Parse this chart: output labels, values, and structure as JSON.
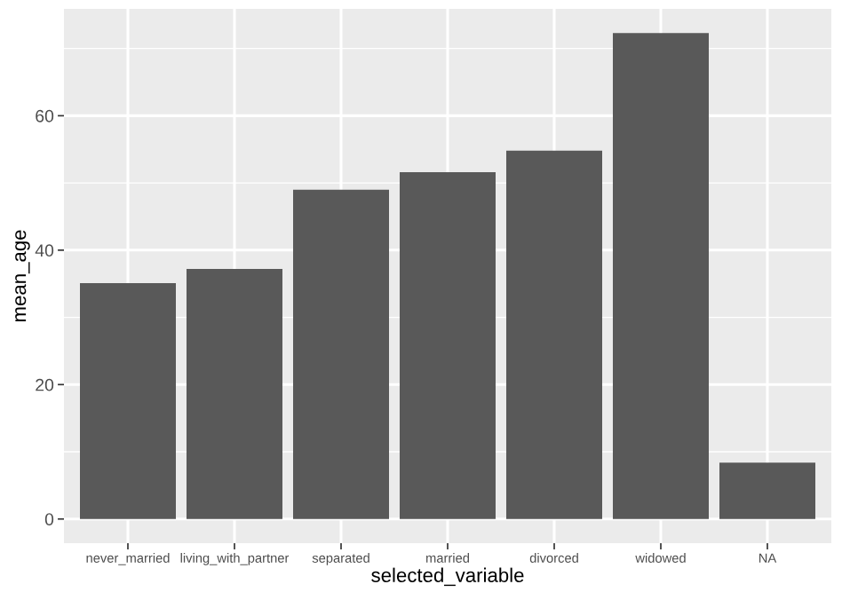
{
  "chart_data": {
    "type": "bar",
    "xlabel": "selected_variable",
    "ylabel": "mean_age",
    "categories": [
      "never_married",
      "living_with_partner",
      "separated",
      "married",
      "divorced",
      "widowed",
      "NA"
    ],
    "values": [
      35.1,
      37.2,
      49.0,
      51.6,
      54.8,
      72.3,
      8.4
    ],
    "color": "#595959",
    "ylim": [
      -3.6,
      75.9
    ],
    "yticks": [
      0,
      20,
      40,
      60
    ],
    "grid": true
  }
}
